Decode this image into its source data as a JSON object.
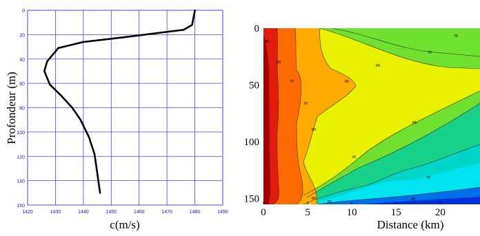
{
  "chart_data": [
    {
      "type": "line",
      "xlabel": "c(m/s)",
      "ylabel": "Profondeur (m)",
      "xlim": [
        1420,
        1490
      ],
      "ylim": [
        0,
        160
      ],
      "y_inverted": true,
      "grid": true,
      "x_ticks": [
        "1420",
        "1430",
        "1440",
        "1450",
        "1460",
        "1470",
        "1480",
        "1490"
      ],
      "y_ticks": [
        "0",
        "20",
        "40",
        "60",
        "80",
        "100",
        "120",
        "140",
        "160"
      ],
      "series": [
        {
          "x": [
            1480,
            1479,
            1476,
            1455,
            1440,
            1431,
            1427,
            1426,
            1428,
            1432,
            1436,
            1439,
            1442,
            1444,
            1445,
            1446
          ],
          "y": [
            0,
            12,
            16,
            22,
            26,
            31,
            42,
            50,
            61,
            70,
            80,
            90,
            104,
            118,
            134,
            150
          ]
        }
      ]
    },
    {
      "type": "heatmap",
      "xlabel": "Distance (km)",
      "x_ticks": [
        "0",
        "5",
        "10",
        "15",
        "20"
      ],
      "y_ticks": [
        "0",
        "50",
        "100",
        "150"
      ],
      "xlim": [
        0,
        24.5
      ],
      "ylim": [
        0,
        155
      ],
      "y_inverted": true,
      "contour_labels": [
        "85",
        "80",
        "75",
        "70",
        "65",
        "60",
        "65",
        "70",
        "75",
        "65",
        "70",
        "70",
        "80",
        "85",
        "90"
      ],
      "colors": [
        "#a00000",
        "#e41c0c",
        "#fe6a00",
        "#ffaa00",
        "#e8f200",
        "#70e030",
        "#18d28a",
        "#00d6c8",
        "#00e4f0",
        "#008cf8",
        "#0030d8"
      ]
    }
  ]
}
